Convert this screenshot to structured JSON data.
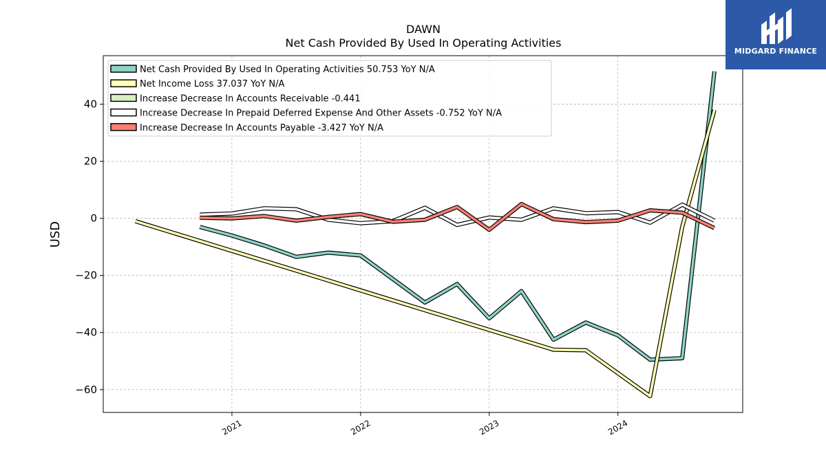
{
  "chart_data": {
    "type": "line",
    "title": "DAWN",
    "subtitle": "Net Cash Provided By Used In Operating Activities",
    "ylabel": "USD",
    "xlabel": "",
    "ylim": [
      -68,
      57
    ],
    "xlim": [
      2020.0,
      2024.97
    ],
    "yticks": [
      40,
      20,
      0,
      -20,
      -40,
      -60
    ],
    "ytick_labels": [
      "40",
      "20",
      "0",
      "−20",
      "−40",
      "−60"
    ],
    "xticks": [
      2021,
      2022,
      2023,
      2024
    ],
    "xtick_labels": [
      "2021",
      "2022",
      "2023",
      "2024"
    ],
    "grid": true,
    "legend_position": "top-left",
    "series": [
      {
        "name": "Net Cash Provided By Used In Operating Activities",
        "legend": "Net Cash Provided By Used In Operating Activities  50.753 YoY N/A",
        "color": "#8dd3c7",
        "points": [
          [
            2020.75,
            -3
          ],
          [
            2021.0,
            -6
          ],
          [
            2021.25,
            -9.5
          ],
          [
            2021.5,
            -13.5
          ],
          [
            2021.75,
            -12
          ],
          [
            2022.0,
            -13
          ],
          [
            2022.5,
            -29.5
          ],
          [
            2022.75,
            -23
          ],
          [
            2023.0,
            -35
          ],
          [
            2023.25,
            -25.5
          ],
          [
            2023.5,
            -42.5
          ],
          [
            2023.75,
            -36.5
          ],
          [
            2024.0,
            -41
          ],
          [
            2024.25,
            -49.5
          ],
          [
            2024.5,
            -49
          ],
          [
            2024.75,
            51.5
          ]
        ]
      },
      {
        "name": "Net Income Loss",
        "legend": "Net Income Loss  37.037 YoY N/A",
        "color": "#ffffb3",
        "points": [
          [
            2020.25,
            -1
          ],
          [
            2023.5,
            -46
          ],
          [
            2023.75,
            -46.2
          ],
          [
            2024.25,
            -62.3
          ],
          [
            2024.5,
            -3
          ],
          [
            2024.75,
            38
          ]
        ]
      },
      {
        "name": "Increase Decrease In Accounts Receivable",
        "legend": "Increase Decrease In Accounts Receivable  -0.441",
        "color": "#d9efc2",
        "points": []
      },
      {
        "name": "Increase Decrease In Prepaid Deferred Expense And Other Assets",
        "legend": "Increase Decrease In Prepaid Deferred Expense And Other Assets  -0.752 YoY N/A",
        "color": "#ffffff",
        "points": [
          [
            2020.75,
            1.3
          ],
          [
            2021.0,
            1.7
          ],
          [
            2021.25,
            3.5
          ],
          [
            2021.5,
            3.2
          ],
          [
            2021.75,
            -0.5
          ],
          [
            2022.0,
            -1.7
          ],
          [
            2022.25,
            -1
          ],
          [
            2022.5,
            3.7
          ],
          [
            2022.75,
            -2.3
          ],
          [
            2023.0,
            0.3
          ],
          [
            2023.25,
            -0.5
          ],
          [
            2023.5,
            3.5
          ],
          [
            2023.75,
            1.8
          ],
          [
            2024.0,
            2.2
          ],
          [
            2024.25,
            -1.5
          ],
          [
            2024.5,
            4.8
          ],
          [
            2024.75,
            -0.8
          ]
        ]
      },
      {
        "name": "Increase Decrease In Accounts Payable",
        "legend": "Increase Decrease In Accounts Payable  -3.427 YoY N/A",
        "color": "#fb8072",
        "points": [
          [
            2020.75,
            0.2
          ],
          [
            2021.0,
            0
          ],
          [
            2021.25,
            0.8
          ],
          [
            2021.5,
            -0.8
          ],
          [
            2021.75,
            0.5
          ],
          [
            2022.0,
            1.5
          ],
          [
            2022.25,
            -1.2
          ],
          [
            2022.5,
            -0.5
          ],
          [
            2022.75,
            4
          ],
          [
            2023.0,
            -4
          ],
          [
            2023.25,
            5
          ],
          [
            2023.5,
            -0.3
          ],
          [
            2023.75,
            -1.3
          ],
          [
            2024.0,
            -0.8
          ],
          [
            2024.25,
            2.8
          ],
          [
            2024.5,
            2
          ],
          [
            2024.75,
            -3.4
          ]
        ]
      }
    ]
  },
  "logo": {
    "text": "MIDGARD FINANCE",
    "background": "#2c5aa8"
  }
}
